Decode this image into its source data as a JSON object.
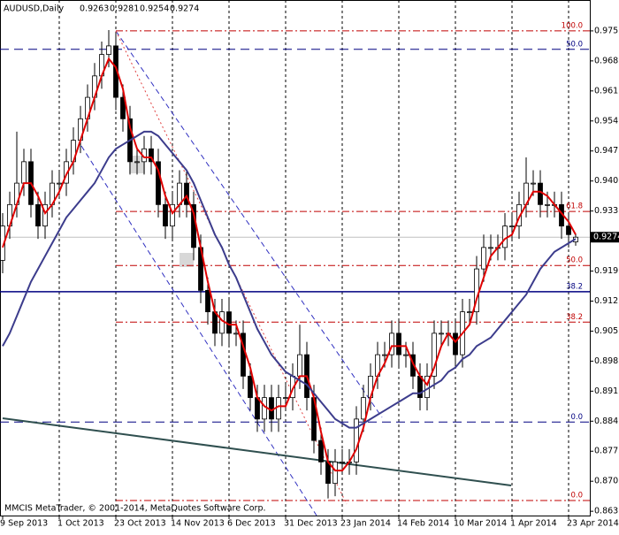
{
  "chart_data": {
    "type": "candlestick",
    "title": "AUDUSD,Daily",
    "quote": [
      0.9263,
      0.9281,
      0.9254,
      0.9274
    ],
    "footer": "MMCIS MetaTrader, © 2001-2014, MetaQuotes Software Corp.",
    "categories": [
      "9 Sep 2013",
      null,
      null,
      null,
      null,
      null,
      null,
      null,
      "1 Oct 2013",
      null,
      null,
      null,
      null,
      null,
      null,
      null,
      "23 Oct 2013",
      null,
      null,
      null,
      null,
      null,
      null,
      null,
      "14 Nov 2013",
      null,
      null,
      null,
      null,
      null,
      null,
      null,
      "6 Dec 2013",
      null,
      null,
      null,
      null,
      null,
      null,
      null,
      "31 Dec 2013",
      null,
      null,
      null,
      null,
      null,
      null,
      null,
      "23 Jan 2014",
      null,
      null,
      null,
      null,
      null,
      null,
      null,
      "14 Feb 2014",
      null,
      null,
      null,
      null,
      null,
      null,
      null,
      "10 Mar 2014",
      null,
      null,
      null,
      null,
      null,
      null,
      null,
      "1 Apr 2014",
      null,
      null,
      null,
      null,
      null,
      null,
      null,
      "23 Apr 2014",
      null
    ],
    "open": [
      0.922,
      0.93,
      0.935,
      0.94,
      0.945,
      0.935,
      0.93,
      0.935,
      0.94,
      0.94,
      0.945,
      0.95,
      0.955,
      0.96,
      0.965,
      0.97,
      0.972,
      0.96,
      0.955,
      0.945,
      0.945,
      0.948,
      0.945,
      0.935,
      0.93,
      0.935,
      0.94,
      0.935,
      0.925,
      0.915,
      0.91,
      0.905,
      0.91,
      0.905,
      0.905,
      0.895,
      0.89,
      0.885,
      0.89,
      0.885,
      0.89,
      0.89,
      0.895,
      0.9,
      0.89,
      0.88,
      0.875,
      0.87,
      0.875,
      0.875,
      0.875,
      0.885,
      0.89,
      0.895,
      0.9,
      0.9,
      0.905,
      0.9,
      0.9,
      0.895,
      0.89,
      0.895,
      0.905,
      0.905,
      0.905,
      0.9,
      0.91,
      0.91,
      0.92,
      0.925,
      0.925,
      0.925,
      0.93,
      0.93,
      0.935,
      0.94,
      0.94,
      0.935,
      0.935,
      0.935,
      0.93,
      0.9263
    ],
    "high": [
      0.933,
      0.938,
      0.952,
      0.948,
      0.948,
      0.938,
      0.938,
      0.943,
      0.943,
      0.948,
      0.953,
      0.958,
      0.963,
      0.968,
      0.973,
      0.9757,
      0.975,
      0.963,
      0.958,
      0.948,
      0.951,
      0.951,
      0.948,
      0.938,
      0.938,
      0.943,
      0.943,
      0.938,
      0.928,
      0.918,
      0.913,
      0.913,
      0.913,
      0.908,
      0.908,
      0.898,
      0.893,
      0.893,
      0.893,
      0.893,
      0.893,
      0.898,
      0.907,
      0.903,
      0.893,
      0.883,
      0.878,
      0.878,
      0.878,
      0.878,
      0.888,
      0.893,
      0.898,
      0.903,
      0.903,
      0.908,
      0.908,
      0.903,
      0.903,
      0.898,
      0.898,
      0.908,
      0.908,
      0.908,
      0.908,
      0.913,
      0.913,
      0.923,
      0.928,
      0.928,
      0.928,
      0.933,
      0.933,
      0.938,
      0.946,
      0.943,
      0.943,
      0.938,
      0.938,
      0.938,
      0.933,
      0.9281
    ],
    "low": [
      0.919,
      0.927,
      0.932,
      0.937,
      0.932,
      0.927,
      0.927,
      0.932,
      0.937,
      0.937,
      0.942,
      0.947,
      0.952,
      0.957,
      0.962,
      0.967,
      0.957,
      0.952,
      0.942,
      0.942,
      0.942,
      0.942,
      0.932,
      0.927,
      0.927,
      0.932,
      0.932,
      0.922,
      0.912,
      0.907,
      0.902,
      0.902,
      0.902,
      0.902,
      0.892,
      0.887,
      0.882,
      0.882,
      0.882,
      0.882,
      0.887,
      0.887,
      0.892,
      0.887,
      0.877,
      0.872,
      0.8665,
      0.867,
      0.872,
      0.872,
      0.872,
      0.882,
      0.887,
      0.892,
      0.897,
      0.897,
      0.897,
      0.897,
      0.892,
      0.887,
      0.887,
      0.892,
      0.902,
      0.902,
      0.897,
      0.897,
      0.907,
      0.907,
      0.917,
      0.922,
      0.922,
      0.922,
      0.927,
      0.927,
      0.932,
      0.937,
      0.932,
      0.932,
      0.932,
      0.927,
      0.925,
      0.9254
    ],
    "close": [
      0.93,
      0.935,
      0.94,
      0.945,
      0.935,
      0.93,
      0.935,
      0.94,
      0.94,
      0.945,
      0.95,
      0.955,
      0.96,
      0.965,
      0.97,
      0.972,
      0.96,
      0.955,
      0.945,
      0.945,
      0.948,
      0.945,
      0.935,
      0.93,
      0.935,
      0.94,
      0.935,
      0.925,
      0.915,
      0.91,
      0.905,
      0.91,
      0.905,
      0.905,
      0.895,
      0.89,
      0.885,
      0.89,
      0.885,
      0.89,
      0.89,
      0.895,
      0.9,
      0.89,
      0.88,
      0.875,
      0.87,
      0.875,
      0.875,
      0.875,
      0.885,
      0.89,
      0.895,
      0.9,
      0.9,
      0.905,
      0.9,
      0.9,
      0.895,
      0.89,
      0.895,
      0.905,
      0.905,
      0.905,
      0.9,
      0.91,
      0.91,
      0.92,
      0.925,
      0.925,
      0.925,
      0.93,
      0.93,
      0.935,
      0.94,
      0.94,
      0.935,
      0.935,
      0.935,
      0.93,
      0.928,
      0.9274
    ],
    "series": [
      {
        "color": "#e00000",
        "values": [
          0.925,
          0.93,
          0.935,
          0.94,
          0.94,
          0.937,
          0.933,
          0.935,
          0.938,
          0.942,
          0.945,
          0.95,
          0.955,
          0.96,
          0.965,
          0.969,
          0.967,
          0.962,
          0.953,
          0.948,
          0.946,
          0.946,
          0.943,
          0.937,
          0.933,
          0.935,
          0.937,
          0.933,
          0.925,
          0.917,
          0.91,
          0.908,
          0.907,
          0.907,
          0.902,
          0.897,
          0.89,
          0.888,
          0.887,
          0.888,
          0.888,
          0.892,
          0.895,
          0.895,
          0.89,
          0.882,
          0.875,
          0.873,
          0.873,
          0.875,
          0.878,
          0.883,
          0.89,
          0.895,
          0.898,
          0.902,
          0.902,
          0.902,
          0.898,
          0.895,
          0.893,
          0.897,
          0.902,
          0.905,
          0.903,
          0.905,
          0.907,
          0.913,
          0.918,
          0.923,
          0.925,
          0.927,
          0.928,
          0.932,
          0.935,
          0.938,
          0.938,
          0.937,
          0.935,
          0.933,
          0.931,
          0.928
        ]
      },
      {
        "color": "#3c3c8c",
        "values": [
          0.902,
          0.905,
          0.909,
          0.913,
          0.917,
          0.92,
          0.923,
          0.926,
          0.929,
          0.932,
          0.934,
          0.936,
          0.938,
          0.94,
          0.943,
          0.946,
          0.948,
          0.949,
          0.95,
          0.951,
          0.952,
          0.952,
          0.951,
          0.949,
          0.947,
          0.945,
          0.943,
          0.94,
          0.936,
          0.932,
          0.928,
          0.925,
          0.921,
          0.918,
          0.914,
          0.91,
          0.906,
          0.903,
          0.9,
          0.898,
          0.896,
          0.895,
          0.894,
          0.893,
          0.891,
          0.889,
          0.887,
          0.885,
          0.884,
          0.883,
          0.883,
          0.884,
          0.885,
          0.886,
          0.887,
          0.888,
          0.889,
          0.89,
          0.891,
          0.891,
          0.892,
          0.893,
          0.894,
          0.896,
          0.897,
          0.899,
          0.9,
          0.902,
          0.903,
          0.904,
          0.906,
          0.908,
          0.91,
          0.912,
          0.914,
          0.917,
          0.92,
          0.922,
          0.924,
          0.925,
          0.926,
          0.927
        ]
      }
    ],
    "ylim": [
      0.8625,
      0.9827
    ],
    "yticks": [
      0.9755,
      0.9685,
      0.9615,
      0.9545,
      0.9475,
      0.9405,
      0.9335,
      0.9195,
      0.9125,
      0.9055,
      0.8985,
      0.8915,
      0.8845,
      0.8775,
      0.8705,
      0.8635
    ],
    "current_price": 0.9274,
    "grid": true,
    "levels": [
      {
        "label": "100.0",
        "value": 0.9755,
        "color": "#c00000",
        "style": "dashdot"
      },
      {
        "label": "61.8",
        "value": 0.9334,
        "color": "#c00000",
        "style": "dashdot"
      },
      {
        "label": "50.0",
        "value": 0.9208,
        "color": "#c00000",
        "style": "dashdot"
      },
      {
        "label": "38.2",
        "value": 0.9076,
        "color": "#c00000",
        "style": "dashdot"
      },
      {
        "label": "0.0",
        "value": 0.866,
        "color": "#c00000",
        "style": "dashdot"
      },
      {
        "label": "50.0",
        "value": 0.9712,
        "color": "#000080",
        "style": "dash"
      },
      {
        "label": "38.2",
        "value": 0.9147,
        "color": "#000080",
        "style": "solid"
      },
      {
        "label": "0.0",
        "value": 0.8843,
        "color": "#000080",
        "style": "dash"
      }
    ]
  }
}
